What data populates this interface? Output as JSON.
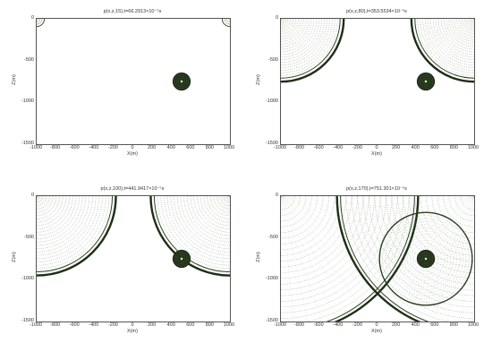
{
  "figure": {
    "x_ticks": [
      "-1000",
      "-800",
      "-600",
      "-400",
      "-200",
      "0",
      "200",
      "400",
      "600",
      "800",
      "1000"
    ],
    "y_ticks": [
      "0",
      "-500",
      "-1000",
      "-1500"
    ]
  },
  "chart_data": [
    {
      "type": "heatmap",
      "title": "p(x,z,15),t=66.2913×10⁻⁵s",
      "xlabel": "X(m)",
      "ylabel": "Z(m)",
      "xlim": [
        -1000,
        1000
      ],
      "ylim": [
        -1500,
        0
      ],
      "grid": false,
      "object": {
        "x": 500,
        "z": -750,
        "r": 80
      },
      "wavefronts": [
        {
          "cx": -1000,
          "cz": 0,
          "r": 80
        },
        {
          "cx": 1000,
          "cz": 0,
          "r": 80
        }
      ],
      "scattered": []
    },
    {
      "type": "heatmap",
      "title": "p(x,z,80),t=353.5534×10⁻⁵s",
      "xlabel": "X(m)",
      "ylabel": "Z(m)",
      "xlim": [
        -1000,
        1000
      ],
      "ylim": [
        -1500,
        0
      ],
      "grid": false,
      "object": {
        "x": 500,
        "z": -750,
        "r": 80
      },
      "wavefronts": [
        {
          "cx": -1000,
          "cz": 0,
          "r": 650
        },
        {
          "cx": 1000,
          "cz": 0,
          "r": 650
        }
      ],
      "scattered": []
    },
    {
      "type": "heatmap",
      "title": "p(x,z,100),t=441.9417×10⁻⁵s",
      "xlabel": "X(m)",
      "ylabel": "Z(m)",
      "xlim": [
        -1000,
        1000
      ],
      "ylim": [
        -1500,
        0
      ],
      "grid": false,
      "object": {
        "x": 500,
        "z": -750,
        "r": 80
      },
      "wavefronts": [
        {
          "cx": -1000,
          "cz": 0,
          "r": 820
        },
        {
          "cx": 1000,
          "cz": 0,
          "r": 820
        }
      ],
      "scattered": [
        {
          "cx": 500,
          "cz": -750,
          "r": 60
        }
      ]
    },
    {
      "type": "heatmap",
      "title": "p(x,z,170),t=751.301×10⁻⁵s",
      "xlabel": "X(m)",
      "ylabel": "Z(m)",
      "xlim": [
        -1000,
        1000
      ],
      "ylim": [
        -1500,
        0
      ],
      "grid": false,
      "object": {
        "x": 500,
        "z": -750,
        "r": 80
      },
      "wavefronts": [
        {
          "cx": -1000,
          "cz": 0,
          "r": 1420
        },
        {
          "cx": 1000,
          "cz": 0,
          "r": 1420
        }
      ],
      "scattered": [
        {
          "cx": 500,
          "cz": -750,
          "r": 480
        }
      ]
    }
  ]
}
